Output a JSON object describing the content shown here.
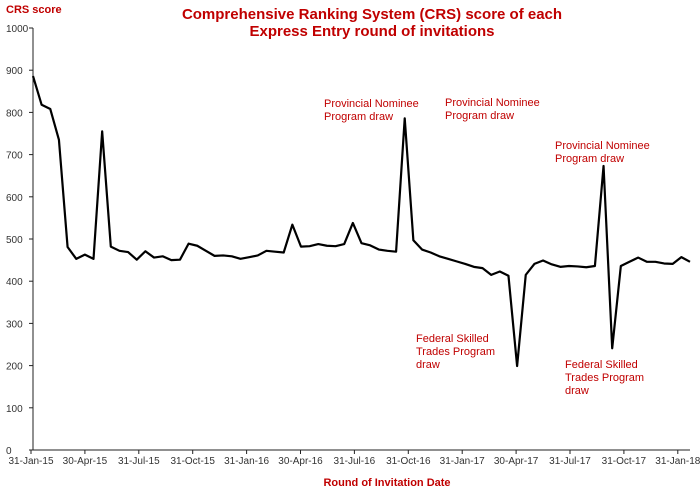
{
  "chart_data": {
    "type": "line",
    "title": "Comprehensive Ranking System (CRS) score of each Express Entry round of invitations",
    "title_lines": [
      "Comprehensive Ranking System (CRS) score of each",
      "Express Entry round of invitations"
    ],
    "ylabel": "CRS score",
    "xlabel": "Round of Invitation Date",
    "ylim": [
      0,
      1000
    ],
    "yticks": [
      0,
      100,
      200,
      300,
      400,
      500,
      600,
      700,
      800,
      900,
      1000
    ],
    "xtick_labels": [
      "31-Jan-15",
      "30-Apr-15",
      "31-Jul-15",
      "31-Oct-15",
      "31-Jan-16",
      "30-Apr-16",
      "31-Jul-16",
      "31-Oct-16",
      "31-Jan-17",
      "30-Apr-17",
      "31-Jul-17",
      "31-Oct-17",
      "31-Jan-18"
    ],
    "grid": false,
    "series": [
      {
        "values": [
          886,
          818,
          808,
          735,
          481,
          453,
          463,
          453,
          755,
          482,
          472,
          469,
          451,
          471,
          456,
          459,
          450,
          451,
          489,
          484,
          472,
          460,
          461,
          459,
          453,
          457,
          461,
          472,
          470,
          468,
          534,
          482,
          483,
          488,
          484,
          483,
          488,
          538,
          490,
          485,
          475,
          472,
          470,
          786,
          497,
          475,
          468,
          459,
          453,
          447,
          441,
          434,
          431,
          415,
          423,
          413,
          199,
          415,
          441,
          449,
          440,
          434,
          436,
          435,
          433,
          436,
          673,
          241,
          436,
          446,
          456,
          446,
          446,
          442,
          441,
          457,
          446
        ]
      }
    ],
    "annotations": [
      {
        "lines": [
          "Provincial Nominee",
          "Program draw"
        ]
      },
      {
        "lines": [
          "Provincial Nominee",
          "Program draw"
        ]
      },
      {
        "lines": [
          "Provincial Nominee",
          "Program draw"
        ]
      },
      {
        "lines": [
          "Federal Skilled",
          "Trades Program",
          "draw"
        ]
      },
      {
        "lines": [
          "Federal Skilled",
          "Trades Program",
          "draw"
        ]
      }
    ],
    "colors": {
      "line": "#000000",
      "text_accent": "#c00000"
    }
  }
}
